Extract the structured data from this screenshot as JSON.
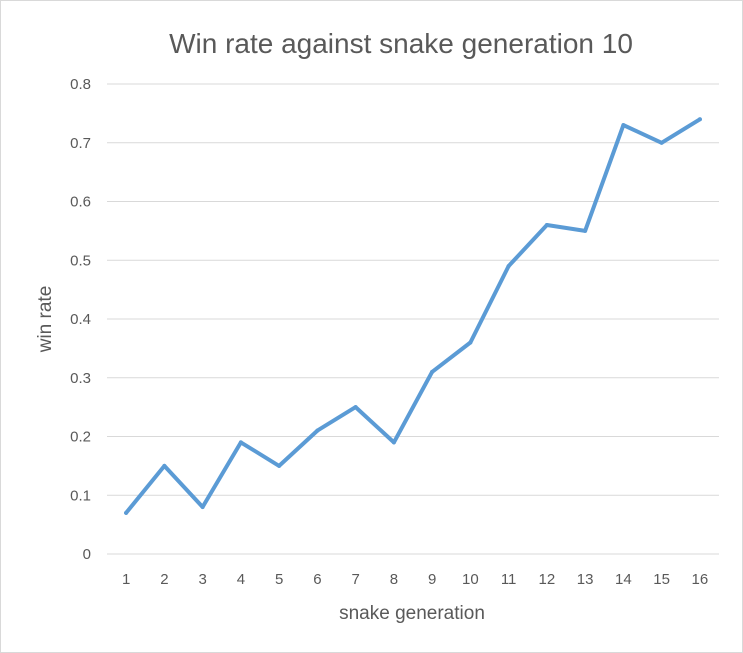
{
  "chart_data": {
    "type": "line",
    "title": "Win rate against snake generation 10",
    "xlabel": "snake generation",
    "ylabel": "win rate",
    "categories": [
      "1",
      "2",
      "3",
      "4",
      "5",
      "6",
      "7",
      "8",
      "9",
      "10",
      "11",
      "12",
      "13",
      "14",
      "15",
      "16"
    ],
    "series": [
      {
        "values": [
          0.07,
          0.15,
          0.08,
          0.19,
          0.15,
          0.21,
          0.25,
          0.19,
          0.31,
          0.36,
          0.49,
          0.56,
          0.55,
          0.73,
          0.7,
          0.74
        ],
        "color": "#5b9bd5"
      }
    ],
    "ylim": [
      0,
      0.8
    ],
    "y_ticks": [
      "0",
      "0.1",
      "0.2",
      "0.3",
      "0.4",
      "0.5",
      "0.6",
      "0.7",
      "0.8"
    ],
    "grid": true,
    "legend": "none"
  }
}
